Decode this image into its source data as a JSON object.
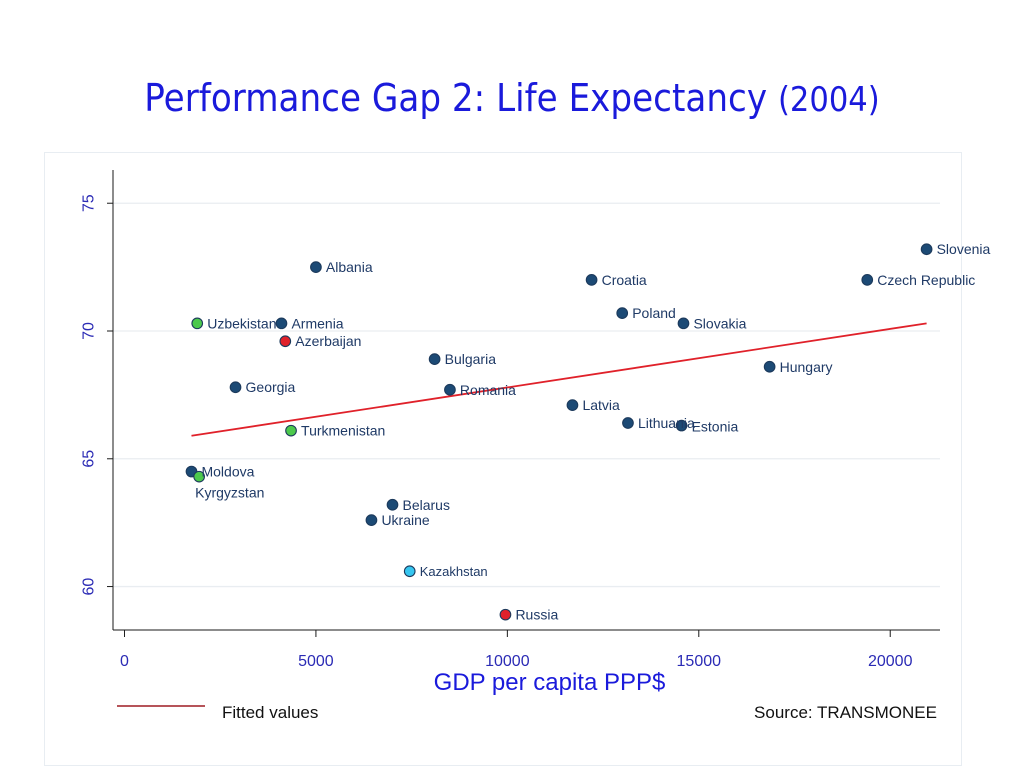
{
  "slide": {
    "title": "Performance Gap 2: Life Expectancy",
    "title_year": "(2004)"
  },
  "chart_data": {
    "type": "scatter",
    "title": "Performance Gap 2: Life Expectancy (2004)",
    "xlabel": "GDP per capita PPP$",
    "ylabel": "",
    "xlim": [
      -300,
      21300
    ],
    "ylim": [
      58.3,
      76.3
    ],
    "x_ticks": [
      0,
      5000,
      10000,
      15000,
      20000
    ],
    "y_ticks": [
      60,
      65,
      70,
      75
    ],
    "grid": true,
    "colors": {
      "default": "#1c4a75",
      "green": "#4cc94c",
      "red": "#e0212a",
      "cyan": "#36c6f0",
      "fit_line": "#e0212a"
    },
    "points": [
      {
        "label": "Slovenia",
        "x": 20950,
        "y": 73.2,
        "color": "default"
      },
      {
        "label": "Czech Republic",
        "x": 19400,
        "y": 72.0,
        "color": "default"
      },
      {
        "label": "Albania",
        "x": 5000,
        "y": 72.5,
        "color": "default"
      },
      {
        "label": "Croatia",
        "x": 12200,
        "y": 72.0,
        "color": "default"
      },
      {
        "label": "Poland",
        "x": 13000,
        "y": 70.7,
        "color": "default"
      },
      {
        "label": "Slovakia",
        "x": 14600,
        "y": 70.3,
        "color": "default"
      },
      {
        "label": "Uzbekistan",
        "x": 1900,
        "y": 70.3,
        "color": "green"
      },
      {
        "label": "Armenia",
        "x": 4100,
        "y": 70.3,
        "color": "default"
      },
      {
        "label": "Azerbaijan",
        "x": 4200,
        "y": 69.6,
        "color": "red"
      },
      {
        "label": "Bulgaria",
        "x": 8100,
        "y": 68.9,
        "color": "default"
      },
      {
        "label": "Hungary",
        "x": 16850,
        "y": 68.6,
        "color": "default"
      },
      {
        "label": "Georgia",
        "x": 2900,
        "y": 67.8,
        "color": "default"
      },
      {
        "label": "Romania",
        "x": 8500,
        "y": 67.7,
        "color": "default"
      },
      {
        "label": "Latvia",
        "x": 11700,
        "y": 67.1,
        "color": "default"
      },
      {
        "label": "Lithuania",
        "x": 13150,
        "y": 66.4,
        "color": "default"
      },
      {
        "label": "Estonia",
        "x": 14550,
        "y": 66.3,
        "color": "default"
      },
      {
        "label": "Turkmenistan",
        "x": 4350,
        "y": 66.1,
        "color": "green"
      },
      {
        "label": "Moldova",
        "x": 1750,
        "y": 64.5,
        "color": "default"
      },
      {
        "label": "Kyrgyzstan",
        "x": 1950,
        "y": 64.3,
        "color": "green"
      },
      {
        "label": "Belarus",
        "x": 7000,
        "y": 63.2,
        "color": "default"
      },
      {
        "label": "Ukraine",
        "x": 6450,
        "y": 62.6,
        "color": "default"
      },
      {
        "label": "Kazakhstan",
        "x": 7450,
        "y": 60.6,
        "color": "cyan"
      },
      {
        "label": "Russia",
        "x": 9950,
        "y": 58.9,
        "color": "red"
      }
    ],
    "fit_line": {
      "name": "Fitted values",
      "x": [
        1750,
        20950
      ],
      "y": [
        65.9,
        70.3
      ]
    },
    "legend": {
      "entries": [
        "Fitted values"
      ],
      "placement": "bottom-left"
    },
    "source": "Source: TRANSMONEE"
  }
}
